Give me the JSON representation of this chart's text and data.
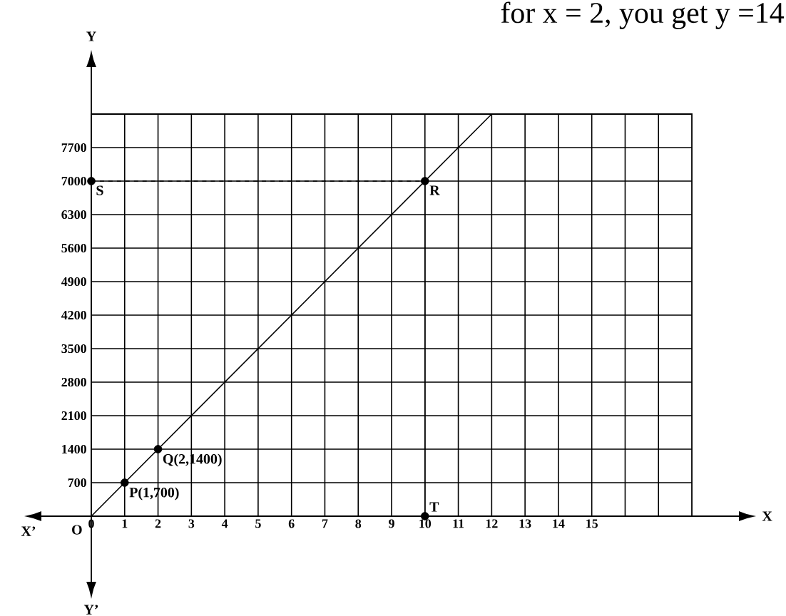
{
  "chart_data": {
    "type": "line",
    "title": "for x = 2, you get y =14",
    "series": [
      {
        "color": "#000000",
        "marker": "none",
        "x": [
          0,
          12
        ],
        "values": [
          0,
          8400
        ]
      },
      {
        "type": "scatter",
        "color": "#000000",
        "x": [
          1,
          2,
          10,
          0,
          10
        ],
        "values": [
          700,
          1400,
          7000,
          7000,
          0
        ]
      },
      {
        "color": "#000000",
        "marker": "none",
        "line_style": "dashed",
        "x": [
          0,
          10
        ],
        "values": [
          7000,
          7000
        ]
      },
      {
        "color": "#000000",
        "marker": "none",
        "x": [
          10,
          10
        ],
        "values": [
          0,
          7000
        ]
      }
    ],
    "annotations": [
      {
        "text": "P(1,700)",
        "x": 1,
        "y": 700
      },
      {
        "text": "Q(2,1400)",
        "x": 2,
        "y": 1400
      },
      {
        "text": "R",
        "x": 10,
        "y": 7000
      },
      {
        "text": "S",
        "x": 0,
        "y": 7000
      },
      {
        "text": "T",
        "x": 10,
        "y": 0
      },
      "X’",
      "Y’",
      "O",
      "X",
      "Y"
    ],
    "xlim": [
      0,
      18
    ],
    "ylim": [
      0,
      8400
    ],
    "xticks": [
      0,
      1,
      2,
      3,
      4,
      5,
      6,
      7,
      8,
      9,
      10,
      11,
      12,
      13,
      14,
      15,
      {
        "value": 16,
        "label": null
      },
      {
        "value": 17,
        "label": null
      }
    ],
    "yticks": [
      700,
      1400,
      2100,
      2800,
      3500,
      4200,
      4900,
      5600,
      6300,
      7000,
      7700
    ],
    "grid": true
  }
}
